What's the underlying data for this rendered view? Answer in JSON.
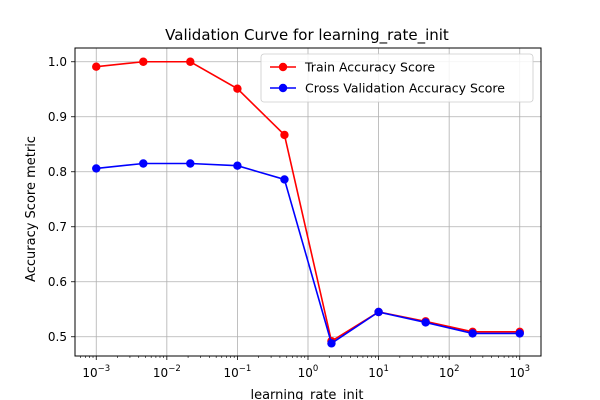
{
  "chart_data": {
    "type": "line",
    "title": "Validation Curve for learning_rate_init",
    "xlabel": "learning_rate_init",
    "ylabel": "Accuracy Score metric",
    "xscale": "log",
    "xlim": [
      0.0005,
      2000
    ],
    "ylim": [
      0.465,
      1.025
    ],
    "grid": true,
    "legend_position": "top-right",
    "x": [
      0.001,
      0.00464,
      0.0215,
      0.1,
      0.464,
      2.15,
      10,
      46.4,
      215,
      1000
    ],
    "x_ticks": [
      {
        "value": 0.001,
        "base": "10",
        "exp": "−3"
      },
      {
        "value": 0.01,
        "base": "10",
        "exp": "−2"
      },
      {
        "value": 0.1,
        "base": "10",
        "exp": "−1"
      },
      {
        "value": 1,
        "base": "10",
        "exp": "0"
      },
      {
        "value": 10,
        "base": "10",
        "exp": "1"
      },
      {
        "value": 100,
        "base": "10",
        "exp": "2"
      },
      {
        "value": 1000,
        "base": "10",
        "exp": "3"
      }
    ],
    "y_ticks": [
      {
        "value": 0.5,
        "label": "0.5"
      },
      {
        "value": 0.6,
        "label": "0.6"
      },
      {
        "value": 0.7,
        "label": "0.7"
      },
      {
        "value": 0.8,
        "label": "0.8"
      },
      {
        "value": 0.9,
        "label": "0.9"
      },
      {
        "value": 1.0,
        "label": "1.0"
      }
    ],
    "series": [
      {
        "name": "Train Accuracy Score",
        "color": "#ff0000",
        "values": [
          0.991,
          1.0,
          1.0,
          0.951,
          0.867,
          0.492,
          0.545,
          0.528,
          0.509,
          0.509
        ]
      },
      {
        "name": "Cross Validation Accuracy Score",
        "color": "#0000ff",
        "values": [
          0.806,
          0.815,
          0.815,
          0.811,
          0.786,
          0.488,
          0.545,
          0.526,
          0.506,
          0.506
        ]
      }
    ]
  }
}
